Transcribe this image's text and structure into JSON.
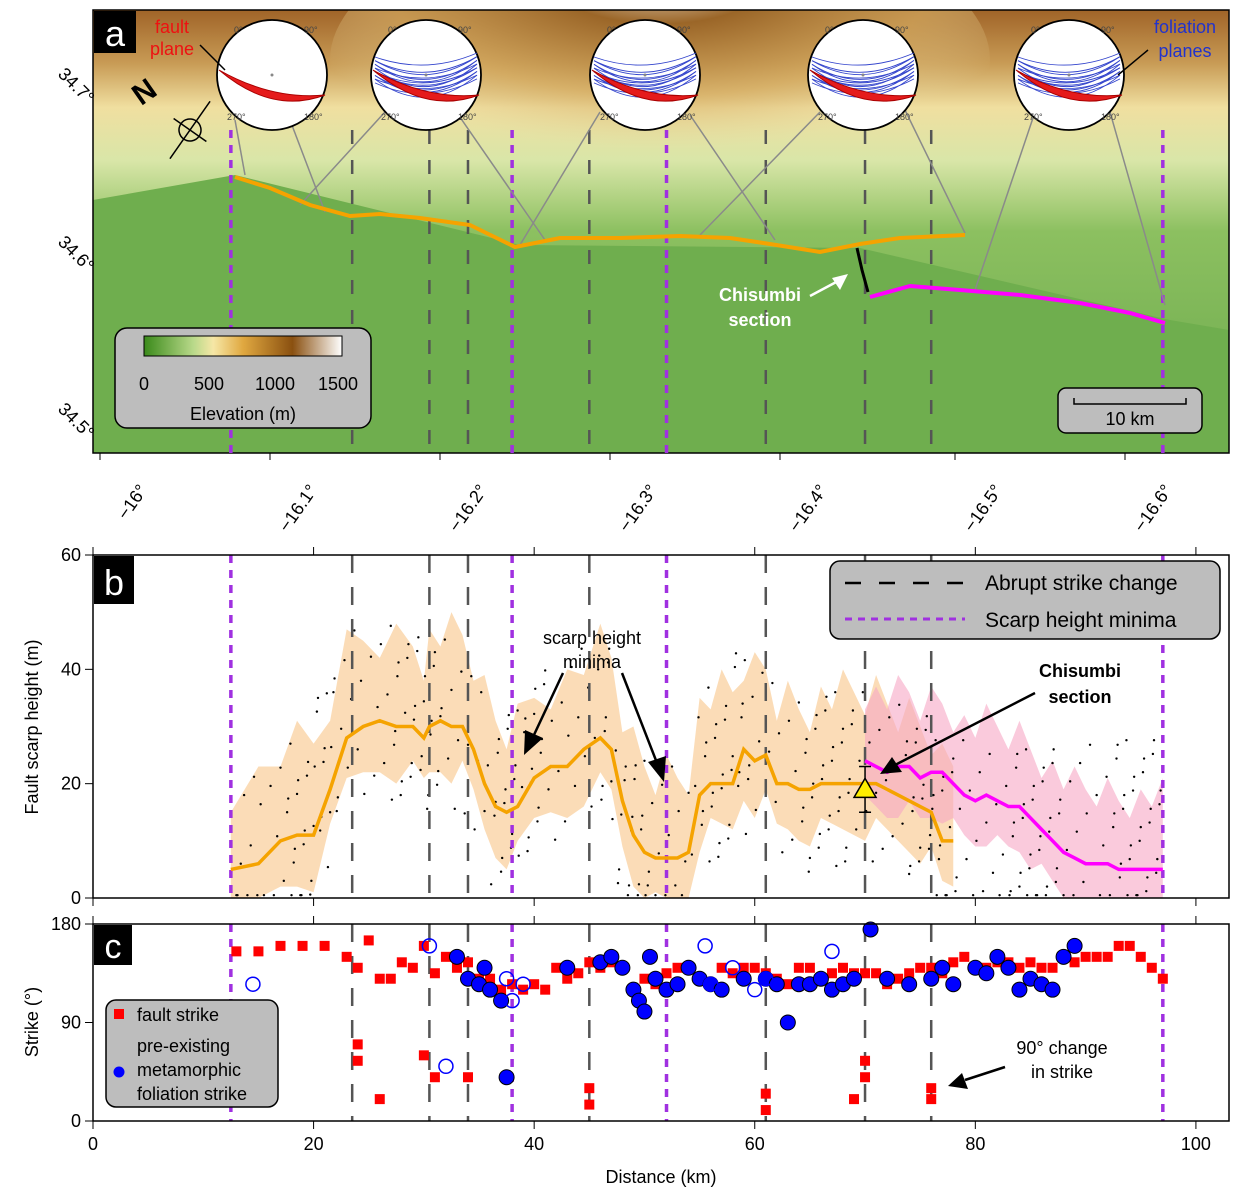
{
  "panels": {
    "a": {
      "letter": "a",
      "lat_ticks": [
        "34.7°",
        "34.6°",
        "34.5°"
      ],
      "lon_ticks": [
        "−16°",
        "−16.1°",
        "−16.2°",
        "−16.3°",
        "−16.4°",
        "−16.5°",
        "−16.6°"
      ],
      "north_label": "N",
      "colorbar": {
        "title": "Elevation (m)",
        "ticks": [
          "0",
          "500",
          "1000",
          "1500"
        ]
      },
      "scalebar": "10 km",
      "label_fault_plane": "fault\nplane",
      "label_foliation": "foliation\nplanes",
      "chisumbi": "Chisumbi\nsection",
      "stereonet_ticks": [
        "0°",
        "90°",
        "180°",
        "270°"
      ]
    },
    "b": {
      "letter": "b",
      "ylabel": "Fault scarp height (m)",
      "legend": [
        "Abrupt strike change",
        "Scarp height minima"
      ],
      "ann_minima": "scarp height\nminima",
      "ann_chisumbi": "Chisumbi\nsection"
    },
    "c": {
      "letter": "c",
      "ylabel": "Strike (°)",
      "xlabel": "Distance (km)",
      "legend_fault": "fault strike",
      "legend_foliation": "pre-existing\nmetamorphic\nfoliation strike",
      "ann_change": "90° change\nin strike"
    }
  },
  "chart_data": [
    {
      "type": "line",
      "panel": "b",
      "xlim": [
        0,
        103
      ],
      "ylim": [
        0,
        60
      ],
      "xticks": [
        0,
        20,
        40,
        60,
        80,
        100
      ],
      "yticks": [
        0,
        20,
        40,
        60
      ],
      "strike_change_x": [
        23.5,
        30.5,
        34,
        45,
        61,
        70,
        76
      ],
      "minima_x": [
        12.5,
        38,
        52,
        97
      ],
      "series": [
        {
          "color": "#f5a300",
          "x": [
            12.5,
            15,
            17,
            18.5,
            20,
            21.5,
            23,
            24.5,
            26,
            27.5,
            29,
            30,
            30.5,
            31.5,
            32.5,
            33.5,
            34.5,
            35.5,
            36.5,
            37.5,
            38.5,
            40,
            41.5,
            43,
            44.5,
            46,
            47,
            48,
            49,
            50,
            51,
            52,
            53,
            54,
            55,
            56,
            57,
            58,
            59,
            60,
            61,
            62,
            63,
            64,
            65,
            66,
            67,
            68,
            69,
            70,
            71,
            72,
            73,
            74,
            75,
            76,
            77,
            78
          ],
          "y": [
            5,
            6,
            10,
            11,
            11,
            19,
            28,
            30,
            31,
            30,
            30,
            28,
            30,
            31,
            30,
            30,
            26,
            20,
            16,
            15,
            16,
            21,
            23,
            23,
            26,
            28,
            26,
            17,
            11,
            8,
            7,
            7,
            7,
            8,
            18,
            20,
            20,
            20,
            26,
            24,
            25,
            20,
            20,
            19,
            19,
            20,
            20,
            20,
            20,
            20,
            20,
            19,
            18,
            17,
            16,
            15,
            10,
            10
          ]
        },
        {
          "color": "#ff00ff",
          "x": [
            70,
            71,
            72,
            73,
            74,
            75,
            76,
            77,
            78,
            79,
            80,
            81,
            82,
            83,
            84,
            85,
            86,
            87,
            88,
            89,
            90,
            91,
            92,
            93,
            94,
            95,
            96,
            97
          ],
          "y": [
            24,
            23,
            22,
            23,
            23,
            21,
            22,
            22,
            20,
            18,
            17,
            18,
            17,
            16,
            16,
            14,
            12,
            10,
            8,
            7,
            6,
            6,
            6,
            5,
            5,
            5,
            5,
            5
          ]
        }
      ],
      "marker": {
        "x": 70,
        "y": 19,
        "err": 4
      }
    },
    {
      "type": "scatter",
      "panel": "c",
      "xlim": [
        0,
        103
      ],
      "ylim": [
        0,
        180
      ],
      "xticks": [
        0,
        20,
        40,
        60,
        80,
        100
      ],
      "yticks": [
        0,
        90,
        180
      ],
      "series": [
        {
          "name": "fault strike",
          "color": "#ff0000",
          "x": [
            13,
            15,
            17,
            19,
            21,
            23,
            24,
            25,
            26,
            27,
            28,
            29,
            30,
            31,
            32,
            33,
            34,
            35,
            36,
            37,
            38,
            39,
            40,
            41,
            42,
            43,
            44,
            45,
            46,
            47,
            48,
            49,
            50,
            51,
            52,
            53,
            54,
            55,
            56,
            57,
            58,
            59,
            60,
            61,
            62,
            63,
            64,
            65,
            66,
            67,
            68,
            69,
            70,
            71,
            72,
            73,
            74,
            75,
            76,
            77,
            78,
            79,
            80,
            81,
            82,
            83,
            84,
            85,
            86,
            87,
            88,
            89,
            90,
            91,
            92,
            93,
            94,
            95,
            96,
            97,
            24,
            24,
            26,
            30,
            31,
            34,
            45,
            45,
            61,
            61,
            70,
            70,
            69,
            76,
            76
          ],
          "y": [
            155,
            155,
            160,
            160,
            160,
            150,
            140,
            165,
            130,
            130,
            145,
            140,
            160,
            135,
            150,
            140,
            145,
            130,
            130,
            120,
            125,
            120,
            125,
            120,
            140,
            130,
            135,
            145,
            140,
            145,
            140,
            120,
            130,
            125,
            135,
            140,
            140,
            130,
            125,
            140,
            135,
            140,
            140,
            135,
            130,
            125,
            140,
            140,
            130,
            135,
            140,
            135,
            135,
            135,
            125,
            130,
            135,
            140,
            140,
            135,
            145,
            150,
            140,
            140,
            145,
            145,
            140,
            145,
            140,
            140,
            150,
            145,
            150,
            150,
            150,
            160,
            160,
            150,
            140,
            130,
            70,
            55,
            20,
            60,
            40,
            40,
            30,
            15,
            25,
            10,
            55,
            40,
            20,
            30,
            20
          ]
        },
        {
          "name": "pre-existing metamorphic foliation strike",
          "color": "#0000ff",
          "x": [
            33,
            34,
            35,
            35.5,
            36,
            37,
            37.5,
            43,
            46,
            47,
            48,
            49,
            49.5,
            50,
            50.5,
            51,
            52,
            53,
            54,
            55,
            56,
            57,
            59,
            61,
            62,
            63,
            64,
            65,
            66,
            67,
            68,
            69,
            70.5,
            72,
            74,
            76,
            77,
            78,
            80,
            81,
            82,
            83,
            84,
            85,
            86,
            87,
            88,
            89
          ],
          "y": [
            150,
            130,
            125,
            140,
            120,
            110,
            40,
            140,
            145,
            150,
            140,
            120,
            110,
            100,
            150,
            130,
            120,
            125,
            140,
            130,
            125,
            120,
            130,
            130,
            125,
            90,
            125,
            125,
            130,
            120,
            125,
            130,
            175,
            130,
            125,
            130,
            140,
            125,
            140,
            135,
            150,
            140,
            120,
            130,
            125,
            120,
            150,
            160
          ],
          "open": {
            "x": [
              14.5,
              30.5,
              32,
              37.5,
              38,
              39,
              55.5,
              56,
              58,
              60,
              61,
              67
            ],
            "y": [
              125,
              160,
              50,
              130,
              110,
              125,
              160,
              125,
              140,
              120,
              130,
              155
            ]
          }
        }
      ]
    }
  ]
}
